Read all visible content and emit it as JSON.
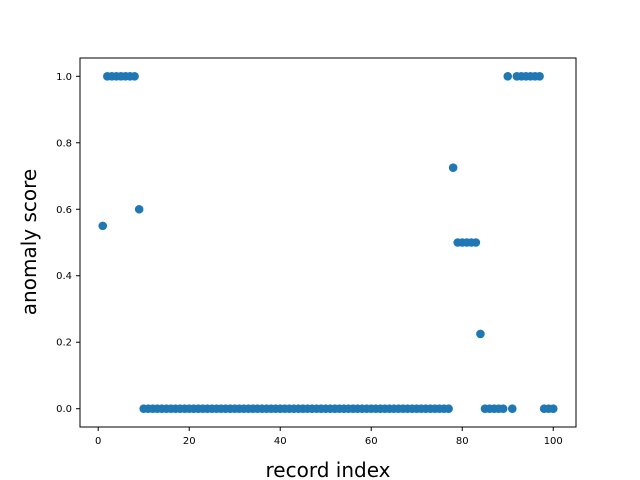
{
  "chart_data": {
    "type": "scatter",
    "title": "",
    "xlabel": "record index",
    "ylabel": "anomaly score",
    "xlim": [
      -4,
      105
    ],
    "ylim": [
      -0.055,
      1.055
    ],
    "xticks": [
      0,
      20,
      40,
      60,
      80,
      100
    ],
    "yticks": [
      0.0,
      0.2,
      0.4,
      0.6,
      0.8,
      1.0
    ],
    "xtick_labels": [
      "0",
      "20",
      "40",
      "60",
      "80",
      "100"
    ],
    "ytick_labels": [
      "0.0",
      "0.2",
      "0.4",
      "0.6",
      "0.8",
      "1.0"
    ],
    "grid": false,
    "marker_color": "#1f77b4",
    "series": [
      {
        "x": [
          1,
          2,
          3,
          4,
          5,
          6,
          7,
          8,
          9,
          10,
          11,
          12,
          13,
          14,
          15,
          16,
          17,
          18,
          19,
          20,
          21,
          22,
          23,
          24,
          25,
          26,
          27,
          28,
          29,
          30,
          31,
          32,
          33,
          34,
          35,
          36,
          37,
          38,
          39,
          40,
          41,
          42,
          43,
          44,
          45,
          46,
          47,
          48,
          49,
          50,
          51,
          52,
          53,
          54,
          55,
          56,
          57,
          58,
          59,
          60,
          61,
          62,
          63,
          64,
          65,
          66,
          67,
          68,
          69,
          70,
          71,
          72,
          73,
          74,
          75,
          76,
          77,
          78,
          79,
          80,
          81,
          82,
          83,
          84,
          85,
          86,
          87,
          88,
          89,
          90,
          91,
          92,
          93,
          94,
          95,
          96,
          97,
          98,
          99,
          100
        ],
        "y": [
          0.55,
          1,
          1,
          1,
          1,
          1,
          1,
          1,
          0.6,
          0,
          0,
          0,
          0,
          0,
          0,
          0,
          0,
          0,
          0,
          0,
          0,
          0,
          0,
          0,
          0,
          0,
          0,
          0,
          0,
          0,
          0,
          0,
          0,
          0,
          0,
          0,
          0,
          0,
          0,
          0,
          0,
          0,
          0,
          0,
          0,
          0,
          0,
          0,
          0,
          0,
          0,
          0,
          0,
          0,
          0,
          0,
          0,
          0,
          0,
          0,
          0,
          0,
          0,
          0,
          0,
          0,
          0,
          0,
          0,
          0,
          0,
          0,
          0,
          0,
          0,
          0,
          0,
          0.725,
          0.5,
          0.5,
          0.5,
          0.5,
          0.5,
          0.225,
          0,
          0,
          0,
          0,
          0,
          1,
          0,
          1,
          1,
          1,
          1,
          1,
          1,
          0,
          0,
          0
        ]
      }
    ]
  }
}
